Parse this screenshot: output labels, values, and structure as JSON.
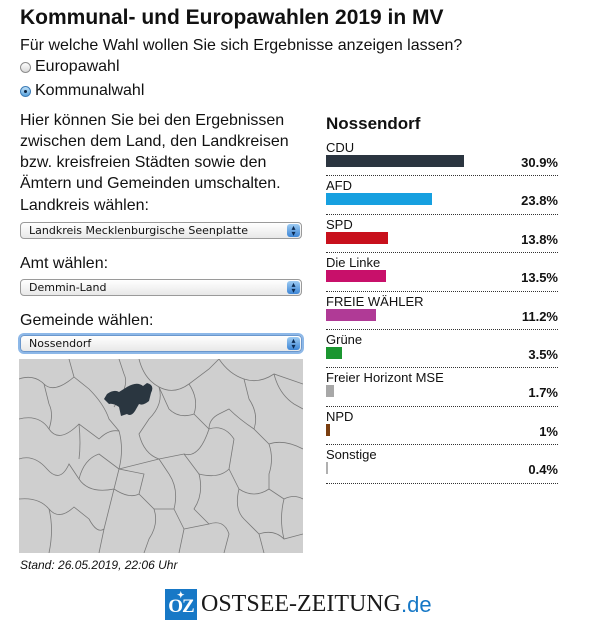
{
  "header": {
    "title": "Kommunal- und Europawahlen 2019 in MV",
    "question": "Für welche Wahl wollen Sie sich Ergebnisse anzeigen lassen?"
  },
  "election_options": [
    {
      "label": "Europawahl",
      "checked": false
    },
    {
      "label": "Kommunalwahl",
      "checked": true
    }
  ],
  "intro": "Hier können Sie bei den Ergebnissen zwischen dem Land, den Landkreisen bzw. kreisfreien Städten sowie den Ämtern und Gemeinden umschalten.",
  "selects": {
    "landkreis": {
      "label": "Landkreis wählen:",
      "value": "Landkreis Mecklenburgische Seenplatte"
    },
    "amt": {
      "label": "Amt wählen:",
      "value": "Demmin-Land"
    },
    "gemeinde": {
      "label": "Gemeinde wählen:",
      "value": "Nossendorf"
    }
  },
  "map": {
    "highlight_color": "#2a3640",
    "base_color": "#cfcfcf",
    "border_color": "#7a7a7a"
  },
  "stand": "Stand: 26.05.2019, 22:06 Uhr",
  "logo": {
    "badge": "OZ",
    "name": "OSTSEE-ZEITUNG",
    "tld": ".de",
    "color": "#1778c6"
  },
  "results": {
    "title": "Nossendorf",
    "parties": [
      {
        "name": "CDU",
        "value": 30.9,
        "label": "30.9%",
        "color": "#2b3540"
      },
      {
        "name": "AFD",
        "value": 23.8,
        "label": "23.8%",
        "color": "#16a0e0"
      },
      {
        "name": "SPD",
        "value": 13.8,
        "label": "13.8%",
        "color": "#c8101c"
      },
      {
        "name": "Die Linke",
        "value": 13.5,
        "label": "13.5%",
        "color": "#c8106a"
      },
      {
        "name": "FREIE WÄHLER",
        "value": 11.2,
        "label": "11.2%",
        "color": "#b03a96"
      },
      {
        "name": "Grüne",
        "value": 3.5,
        "label": "3.5%",
        "color": "#1b9630"
      },
      {
        "name": "Freier Horizont MSE",
        "value": 1.7,
        "label": "1.7%",
        "color": "#a8a8a8"
      },
      {
        "name": "NPD",
        "value": 1.0,
        "label": "1%",
        "color": "#7a3e10"
      },
      {
        "name": "Sonstige",
        "value": 0.4,
        "label": "0.4%",
        "color": "#b0b0b0"
      }
    ]
  }
}
